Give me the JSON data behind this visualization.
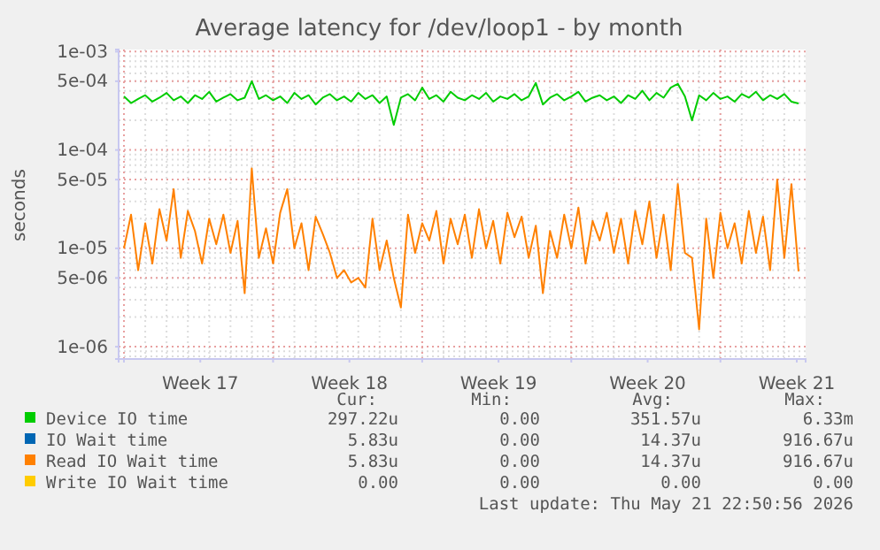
{
  "chart_data": {
    "type": "line",
    "title": "Average latency for /dev/loop1 - by month",
    "ylabel": "seconds",
    "log": true,
    "grid": true,
    "legend": "bottom",
    "line_style": "solid",
    "marker": "none",
    "xlim": [
      "2026-04-19T18:00",
      "2026-05-22T00:00"
    ],
    "xticks": [
      {
        "value": "2026-04-20",
        "label": null
      },
      {
        "value": "2026-04-23T14:00",
        "label": "Week 17"
      },
      {
        "value": "2026-04-27",
        "label": null
      },
      {
        "value": "2026-04-30T14:00",
        "label": "Week 18"
      },
      {
        "value": "2026-05-04",
        "label": null
      },
      {
        "value": "2026-05-07T14:00",
        "label": "Week 19"
      },
      {
        "value": "2026-05-11",
        "label": null
      },
      {
        "value": "2026-05-14T14:00",
        "label": "Week 20"
      },
      {
        "value": "2026-05-18",
        "label": null
      },
      {
        "value": "2026-05-21T14:00",
        "label": "Week 21"
      }
    ],
    "ylim": [
      7.5e-07,
      0.00105
    ],
    "yticks": [
      {
        "value": 0.001,
        "label": "1e-03"
      },
      {
        "value": 0.0005,
        "label": "5e-04"
      },
      {
        "value": 0.0001,
        "label": "1e-04"
      },
      {
        "value": 5e-05,
        "label": "5e-05"
      },
      {
        "value": 1e-05,
        "label": "1e-05"
      },
      {
        "value": 5e-06,
        "label": "5e-06"
      },
      {
        "value": 1e-06,
        "label": "1e-06"
      }
    ],
    "x": [
      "2026-04-20T00:00",
      "2026-04-20T08:00",
      "2026-04-20T16:00",
      "2026-04-21T00:00",
      "2026-04-21T08:00",
      "2026-04-21T16:00",
      "2026-04-22T00:00",
      "2026-04-22T08:00",
      "2026-04-22T16:00",
      "2026-04-23T00:00",
      "2026-04-23T08:00",
      "2026-04-23T16:00",
      "2026-04-24T00:00",
      "2026-04-24T08:00",
      "2026-04-24T16:00",
      "2026-04-25T00:00",
      "2026-04-25T08:00",
      "2026-04-25T16:00",
      "2026-04-26T00:00",
      "2026-04-26T08:00",
      "2026-04-26T16:00",
      "2026-04-27T00:00",
      "2026-04-27T08:00",
      "2026-04-27T16:00",
      "2026-04-28T00:00",
      "2026-04-28T08:00",
      "2026-04-28T16:00",
      "2026-04-29T00:00",
      "2026-04-29T08:00",
      "2026-04-29T16:00",
      "2026-04-30T00:00",
      "2026-04-30T08:00",
      "2026-04-30T16:00",
      "2026-05-01T00:00",
      "2026-05-01T08:00",
      "2026-05-01T16:00",
      "2026-05-02T00:00",
      "2026-05-02T08:00",
      "2026-05-02T16:00",
      "2026-05-03T00:00",
      "2026-05-03T08:00",
      "2026-05-03T16:00",
      "2026-05-04T00:00",
      "2026-05-04T08:00",
      "2026-05-04T16:00",
      "2026-05-05T00:00",
      "2026-05-05T08:00",
      "2026-05-05T16:00",
      "2026-05-06T00:00",
      "2026-05-06T08:00",
      "2026-05-06T16:00",
      "2026-05-07T00:00",
      "2026-05-07T08:00",
      "2026-05-07T16:00",
      "2026-05-08T00:00",
      "2026-05-08T08:00",
      "2026-05-08T16:00",
      "2026-05-09T00:00",
      "2026-05-09T08:00",
      "2026-05-09T16:00",
      "2026-05-10T00:00",
      "2026-05-10T08:00",
      "2026-05-10T16:00",
      "2026-05-11T00:00",
      "2026-05-11T08:00",
      "2026-05-11T16:00",
      "2026-05-12T00:00",
      "2026-05-12T08:00",
      "2026-05-12T16:00",
      "2026-05-13T00:00",
      "2026-05-13T08:00",
      "2026-05-13T16:00",
      "2026-05-14T00:00",
      "2026-05-14T08:00",
      "2026-05-14T16:00",
      "2026-05-15T00:00",
      "2026-05-15T08:00",
      "2026-05-15T16:00",
      "2026-05-16T00:00",
      "2026-05-16T08:00",
      "2026-05-16T16:00",
      "2026-05-17T00:00",
      "2026-05-17T08:00",
      "2026-05-17T16:00",
      "2026-05-18T00:00",
      "2026-05-18T08:00",
      "2026-05-18T16:00",
      "2026-05-19T00:00",
      "2026-05-19T08:00",
      "2026-05-19T16:00",
      "2026-05-20T00:00",
      "2026-05-20T08:00",
      "2026-05-20T16:00",
      "2026-05-21T00:00",
      "2026-05-21T08:00",
      "2026-05-21T16:00"
    ],
    "series": [
      {
        "name": "Device IO time",
        "color": "#00cc00",
        "values": [
          0.00035,
          0.0003,
          0.00033,
          0.00036,
          0.00031,
          0.00034,
          0.00038,
          0.00032,
          0.00035,
          0.0003,
          0.00036,
          0.00033,
          0.00039,
          0.00031,
          0.00034,
          0.00037,
          0.00032,
          0.00034,
          0.0005,
          0.00033,
          0.00036,
          0.00032,
          0.00035,
          0.0003,
          0.00038,
          0.00033,
          0.00036,
          0.00029,
          0.00034,
          0.00037,
          0.00032,
          0.00035,
          0.00031,
          0.00038,
          0.00033,
          0.00036,
          0.0003,
          0.00035,
          0.00018,
          0.00034,
          0.00037,
          0.00032,
          0.00043,
          0.00033,
          0.00036,
          0.00031,
          0.00039,
          0.00034,
          0.00032,
          0.00036,
          0.00033,
          0.00038,
          0.00031,
          0.00035,
          0.00033,
          0.00037,
          0.00032,
          0.00035,
          0.00048,
          0.00029,
          0.00034,
          0.00037,
          0.00032,
          0.00035,
          0.00039,
          0.00031,
          0.00034,
          0.00036,
          0.00032,
          0.00035,
          0.0003,
          0.00036,
          0.00033,
          0.0004,
          0.00032,
          0.00038,
          0.00034,
          0.00043,
          0.00047,
          0.00035,
          0.0002,
          0.00036,
          0.00032,
          0.00038,
          0.00033,
          0.00035,
          0.00031,
          0.00037,
          0.00034,
          0.00039,
          0.00032,
          0.00036,
          0.00033,
          0.00037,
          0.00031,
          0.000297
        ]
      },
      {
        "name": "IO Wait time",
        "color": "#0066b3",
        "values": [
          null,
          null,
          null,
          null,
          null,
          null,
          null,
          null,
          null,
          null,
          null,
          null,
          null,
          null,
          null,
          null,
          null,
          null,
          null,
          null,
          null,
          null,
          null,
          null,
          null,
          null,
          null,
          null,
          null,
          null,
          null,
          null,
          null,
          null,
          null,
          null,
          null,
          null,
          null,
          null,
          null,
          null,
          null,
          null,
          null,
          null,
          null,
          null,
          null,
          null,
          null,
          null,
          null,
          null,
          null,
          null,
          null,
          null,
          null,
          null,
          null,
          null,
          null,
          null,
          null,
          null,
          null,
          null,
          null,
          null,
          null,
          null,
          null,
          null,
          null,
          null,
          null,
          null,
          null,
          null,
          null,
          null,
          null,
          null,
          null,
          null,
          null,
          null,
          null,
          null,
          null,
          null,
          null,
          null,
          null,
          null
        ]
      },
      {
        "name": "Read IO Wait time",
        "color": "#ff8000",
        "values": [
          1e-05,
          2.2e-05,
          6e-06,
          1.8e-05,
          7e-06,
          2.5e-05,
          1.2e-05,
          4e-05,
          8e-06,
          2.4e-05,
          1.5e-05,
          7e-06,
          2e-05,
          1.1e-05,
          2.2e-05,
          9e-06,
          1.9e-05,
          3.5e-06,
          6.5e-05,
          8e-06,
          1.6e-05,
          7e-06,
          2.3e-05,
          4e-05,
          1e-05,
          1.8e-05,
          6e-06,
          2.1e-05,
          1.4e-05,
          9e-06,
          5e-06,
          6e-06,
          4.5e-06,
          5e-06,
          4e-06,
          2e-05,
          6e-06,
          1.2e-05,
          5e-06,
          2.5e-06,
          2.2e-05,
          9e-06,
          1.8e-05,
          1.2e-05,
          2.4e-05,
          7e-06,
          2e-05,
          1.1e-05,
          2.2e-05,
          8e-06,
          2.5e-05,
          1e-05,
          1.9e-05,
          7e-06,
          2.3e-05,
          1.3e-05,
          2.1e-05,
          8e-06,
          1.7e-05,
          3.5e-06,
          1.5e-05,
          8e-06,
          2.2e-05,
          1e-05,
          2.6e-05,
          7e-06,
          1.9e-05,
          1.2e-05,
          2.3e-05,
          9e-06,
          2e-05,
          7e-06,
          2.4e-05,
          1.1e-05,
          3e-05,
          8e-06,
          2.2e-05,
          6e-06,
          4.5e-05,
          9e-06,
          8e-06,
          1.5e-06,
          2e-05,
          5e-06,
          2.3e-05,
          1e-05,
          1.8e-05,
          7e-06,
          2.4e-05,
          9e-06,
          2.1e-05,
          6e-06,
          5e-05,
          8e-06,
          4.5e-05,
          5.83e-06
        ]
      },
      {
        "name": "Write IO Wait time",
        "color": "#ffcc00",
        "values": [
          null,
          null,
          null,
          null,
          null,
          null,
          null,
          null,
          null,
          null,
          null,
          null,
          null,
          null,
          null,
          null,
          null,
          null,
          null,
          null,
          null,
          null,
          null,
          null,
          null,
          null,
          null,
          null,
          null,
          null,
          null,
          null,
          null,
          null,
          null,
          null,
          null,
          null,
          null,
          null,
          null,
          null,
          null,
          null,
          null,
          null,
          null,
          null,
          null,
          null,
          null,
          null,
          null,
          null,
          null,
          null,
          null,
          null,
          null,
          null,
          null,
          null,
          null,
          null,
          null,
          null,
          null,
          null,
          null,
          null,
          null,
          null,
          null,
          null,
          null,
          null,
          null,
          null,
          null,
          null,
          null,
          null,
          null,
          null,
          null,
          null,
          null,
          null,
          null,
          null,
          null,
          null,
          null,
          null,
          null,
          null
        ]
      }
    ],
    "annotations": [
      "Cur:",
      "Min:",
      "Avg:",
      "Max:",
      "297.22u",
      "0.00",
      "351.57u",
      "6.33m",
      "5.83u",
      "0.00",
      "14.37u",
      "916.67u",
      "5.83u",
      "0.00",
      "14.37u",
      "916.67u",
      "0.00",
      "0.00",
      "0.00",
      "0.00",
      "Last update: Thu May 21 22:50:56 2026"
    ]
  }
}
